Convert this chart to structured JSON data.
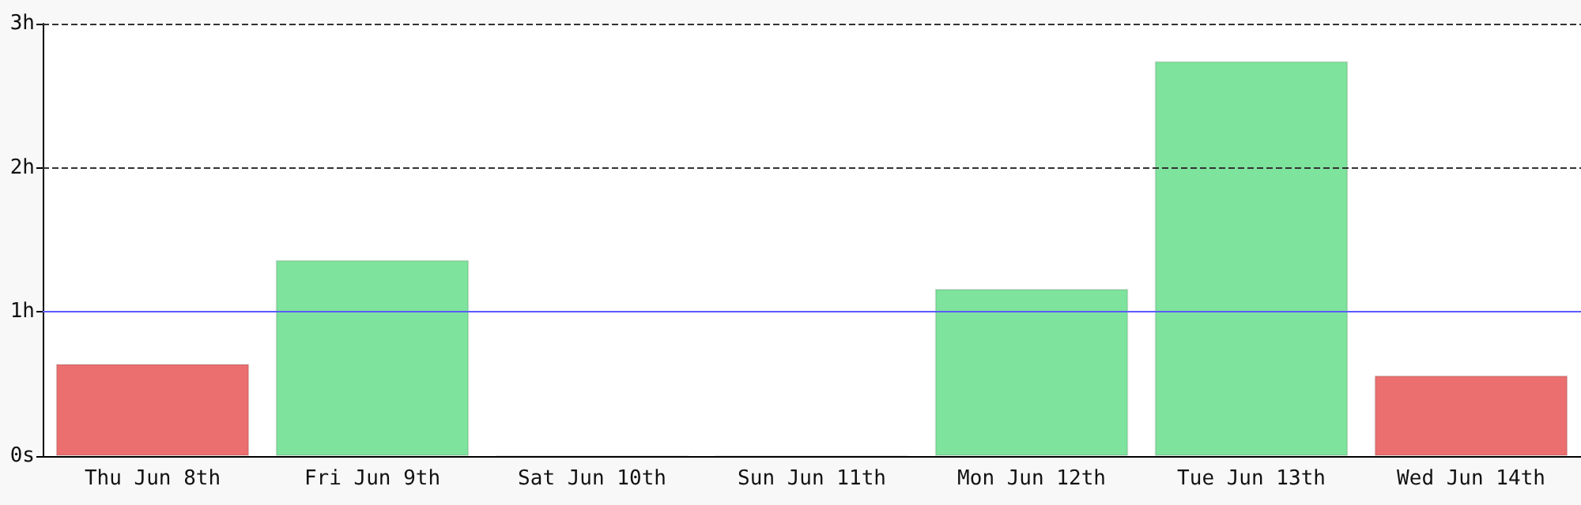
{
  "chart_data": {
    "type": "bar",
    "categories": [
      "Thu Jun 8th",
      "Fri Jun 9th",
      "Sat Jun 10th",
      "Sun Jun 11th",
      "Mon Jun 12th",
      "Tue Jun 13th",
      "Wed Jun 14th"
    ],
    "values": [
      0.64,
      1.36,
      0,
      0,
      1.16,
      2.74,
      0.56
    ],
    "colors": [
      "#eb6f6f",
      "#7ee39c",
      "#7ee39c",
      "#7ee39c",
      "#7ee39c",
      "#7ee39c",
      "#eb6f6f"
    ],
    "ylim": [
      0,
      3
    ],
    "yticks": [
      {
        "value": 0,
        "label": "0s"
      },
      {
        "value": 1,
        "label": "1h"
      },
      {
        "value": 2,
        "label": "2h"
      },
      {
        "value": 3,
        "label": "3h"
      }
    ],
    "ref_lines": [
      {
        "axis": "y",
        "value": 1,
        "color": "#5c5cff"
      },
      {
        "axis": "y",
        "value": 2,
        "color": "#333333",
        "line_style": "dashed"
      },
      {
        "axis": "y",
        "value": 3,
        "color": "#333333",
        "line_style": "dashed"
      }
    ]
  }
}
